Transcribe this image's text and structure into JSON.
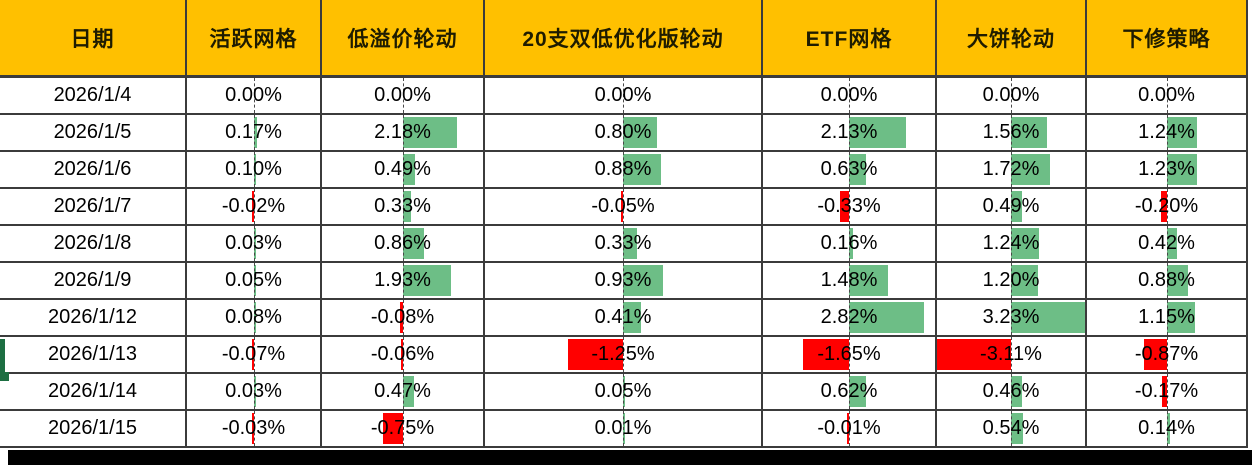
{
  "table": {
    "columns": [
      {
        "label": "日期"
      },
      {
        "label": "活跃网格"
      },
      {
        "label": "低溢价轮动"
      },
      {
        "label": "20支双低优化版轮动"
      },
      {
        "label": "ETF网格"
      },
      {
        "label": "大饼轮动"
      },
      {
        "label": "下修策略"
      }
    ],
    "rows": [
      {
        "date": "2026/1/4",
        "values": [
          "0.00%",
          "0.00%",
          "0.00%",
          "0.00%",
          "0.00%",
          "0.00%"
        ]
      },
      {
        "date": "2026/1/5",
        "values": [
          "0.17%",
          "2.18%",
          "0.80%",
          "2.13%",
          "1.56%",
          "1.24%"
        ]
      },
      {
        "date": "2026/1/6",
        "values": [
          "0.10%",
          "0.49%",
          "0.88%",
          "0.63%",
          "1.72%",
          "1.23%"
        ]
      },
      {
        "date": "2026/1/7",
        "values": [
          "-0.02%",
          "0.33%",
          "-0.05%",
          "-0.33%",
          "0.49%",
          "-0.20%"
        ]
      },
      {
        "date": "2026/1/8",
        "values": [
          "0.03%",
          "0.86%",
          "0.33%",
          "0.16%",
          "1.24%",
          "0.42%"
        ]
      },
      {
        "date": "2026/1/9",
        "values": [
          "0.05%",
          "1.93%",
          "0.93%",
          "1.48%",
          "1.20%",
          "0.88%"
        ]
      },
      {
        "date": "2026/1/12",
        "values": [
          "0.08%",
          "-0.08%",
          "0.41%",
          "2.82%",
          "3.23%",
          "1.15%"
        ]
      },
      {
        "date": "2026/1/13",
        "values": [
          "-0.07%",
          "-0.06%",
          "-1.25%",
          "-1.65%",
          "-3.11%",
          "-0.87%"
        ]
      },
      {
        "date": "2026/1/14",
        "values": [
          "0.03%",
          "0.47%",
          "0.05%",
          "0.62%",
          "0.46%",
          "-0.17%"
        ]
      },
      {
        "date": "2026/1/15",
        "values": [
          "-0.03%",
          "-0.75%",
          "0.01%",
          "-0.01%",
          "0.54%",
          "0.14%"
        ]
      }
    ],
    "bar_scale": {
      "max": 3.23,
      "min": -3.11
    }
  },
  "colors": {
    "header_bg": "#FFC000",
    "positive_bar": "#6DBE86",
    "negative_bar": "#FF0000",
    "gridline": "#3b3b3b",
    "selection_marker": "#1d6f42"
  }
}
